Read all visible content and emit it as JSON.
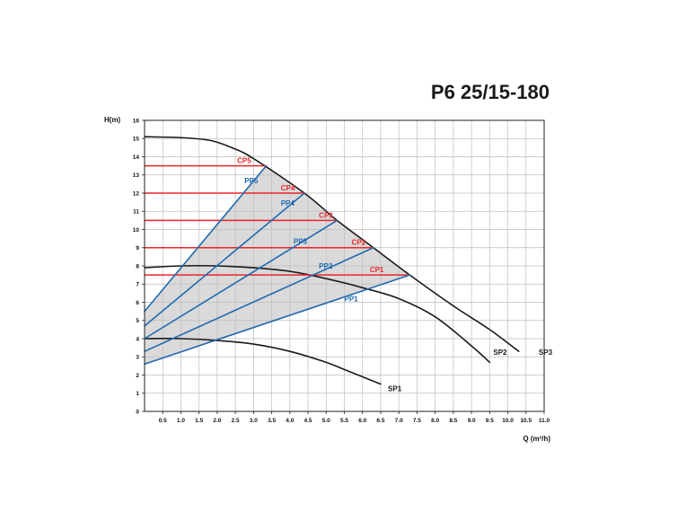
{
  "chart_data": {
    "type": "line",
    "title": "P6 25/15-180",
    "xlabel": "Q (m³/h)",
    "ylabel": "H(m)",
    "xlim": [
      0,
      11
    ],
    "ylim": [
      0,
      16
    ],
    "grid": true,
    "x_ticks": [
      "0.5",
      "1.0",
      "1.5",
      "2.0",
      "2.5",
      "3.0",
      "3.5",
      "4.0",
      "4.5",
      "5.0",
      "5.5",
      "6.0",
      "6.5",
      "7.0",
      "7.5",
      "8.0",
      "8.5",
      "9.0",
      "9.5",
      "10.0",
      "10.5",
      "11.0"
    ],
    "x_tick_values": [
      0.5,
      1.0,
      1.5,
      2.0,
      2.5,
      3.0,
      3.5,
      4.0,
      4.5,
      5.0,
      5.5,
      6.0,
      6.5,
      7.0,
      7.5,
      8.0,
      8.5,
      9.0,
      9.5,
      10.0,
      10.5,
      11.0
    ],
    "y_ticks": [
      "0",
      "1",
      "2",
      "3",
      "4",
      "5",
      "6",
      "7",
      "8",
      "9",
      "10",
      "11",
      "12",
      "13",
      "14",
      "15",
      "16"
    ],
    "shaded_region": [
      [
        0,
        5.5
      ],
      [
        0,
        4.7
      ],
      [
        0,
        4.0
      ],
      [
        0,
        3.3
      ],
      [
        0,
        2.6
      ],
      [
        7.3,
        7.5
      ],
      [
        6.3,
        9.0
      ],
      [
        5.3,
        10.5
      ],
      [
        4.4,
        12.0
      ],
      [
        3.35,
        13.5
      ]
    ],
    "colors": {
      "constant_pressure": "#e8262b",
      "proportional_pressure": "#1f6ab0",
      "speed_curve": "#1a1a1a",
      "grid": "#bdbdbd",
      "shade": "#dadada"
    },
    "series": [
      {
        "name": "SP3",
        "kind": "speed",
        "x": [
          0,
          1.0,
          1.8,
          2.4,
          3.0,
          4.4,
          5.3,
          6.3,
          7.3,
          8.5,
          9.5,
          10.3
        ],
        "y": [
          15.1,
          15.05,
          14.9,
          14.5,
          13.9,
          12.0,
          10.5,
          9.0,
          7.5,
          5.8,
          4.5,
          3.3
        ]
      },
      {
        "name": "SP2",
        "kind": "speed",
        "x": [
          0,
          1.0,
          2.0,
          3.0,
          4.0,
          5.0,
          6.0,
          7.0,
          8.0,
          9.0,
          9.5
        ],
        "y": [
          7.9,
          8.0,
          8.0,
          7.9,
          7.7,
          7.3,
          6.8,
          6.2,
          5.2,
          3.6,
          2.7
        ]
      },
      {
        "name": "SP1",
        "kind": "speed",
        "x": [
          0,
          1.0,
          2.0,
          3.0,
          4.0,
          5.0,
          5.5,
          6.0,
          6.5
        ],
        "y": [
          4.0,
          4.0,
          3.9,
          3.7,
          3.3,
          2.7,
          2.3,
          1.9,
          1.5
        ]
      },
      {
        "name": "CP5",
        "kind": "constant",
        "x": [
          0,
          3.35
        ],
        "y": [
          13.5,
          13.5
        ]
      },
      {
        "name": "CP4",
        "kind": "constant",
        "x": [
          0,
          4.4
        ],
        "y": [
          12.0,
          12.0
        ]
      },
      {
        "name": "CP3",
        "kind": "constant",
        "x": [
          0,
          5.3
        ],
        "y": [
          10.5,
          10.5
        ]
      },
      {
        "name": "CP2",
        "kind": "constant",
        "x": [
          0,
          6.3
        ],
        "y": [
          9.0,
          9.0
        ]
      },
      {
        "name": "CP1",
        "kind": "constant",
        "x": [
          0,
          7.3
        ],
        "y": [
          7.5,
          7.5
        ]
      },
      {
        "name": "PP5",
        "kind": "proportional",
        "x": [
          0,
          3.35
        ],
        "y": [
          5.5,
          13.5
        ]
      },
      {
        "name": "PP4",
        "kind": "proportional",
        "x": [
          0,
          4.4
        ],
        "y": [
          4.7,
          12.0
        ]
      },
      {
        "name": "PP3",
        "kind": "proportional",
        "x": [
          0,
          5.3
        ],
        "y": [
          4.0,
          10.5
        ]
      },
      {
        "name": "PP2",
        "kind": "proportional",
        "x": [
          0,
          6.3
        ],
        "y": [
          3.3,
          9.0
        ]
      },
      {
        "name": "PP1",
        "kind": "proportional",
        "x": [
          0,
          7.3
        ],
        "y": [
          2.6,
          7.5
        ]
      }
    ],
    "annotations": [
      {
        "text": "CP5",
        "x": 2.55,
        "y": 13.65,
        "kind": "constant"
      },
      {
        "text": "CP4",
        "x": 3.75,
        "y": 12.15,
        "kind": "constant"
      },
      {
        "text": "CP3",
        "x": 4.8,
        "y": 10.65,
        "kind": "constant"
      },
      {
        "text": "CP2",
        "x": 5.7,
        "y": 9.15,
        "kind": "constant"
      },
      {
        "text": "CP1",
        "x": 6.2,
        "y": 7.65,
        "kind": "constant"
      },
      {
        "text": "PP5",
        "x": 2.75,
        "y": 12.55,
        "kind": "proportional"
      },
      {
        "text": "PP4",
        "x": 3.75,
        "y": 11.3,
        "kind": "proportional"
      },
      {
        "text": "PP3",
        "x": 4.1,
        "y": 9.2,
        "kind": "proportional"
      },
      {
        "text": "PP2",
        "x": 4.8,
        "y": 7.85,
        "kind": "proportional"
      },
      {
        "text": "PP1",
        "x": 5.5,
        "y": 6.05,
        "kind": "proportional"
      },
      {
        "text": "SP3",
        "x": 10.85,
        "y": 3.1,
        "kind": "speed"
      },
      {
        "text": "SP2",
        "x": 9.6,
        "y": 3.1,
        "kind": "speed"
      },
      {
        "text": "SP1",
        "x": 6.7,
        "y": 1.1,
        "kind": "speed"
      }
    ]
  }
}
